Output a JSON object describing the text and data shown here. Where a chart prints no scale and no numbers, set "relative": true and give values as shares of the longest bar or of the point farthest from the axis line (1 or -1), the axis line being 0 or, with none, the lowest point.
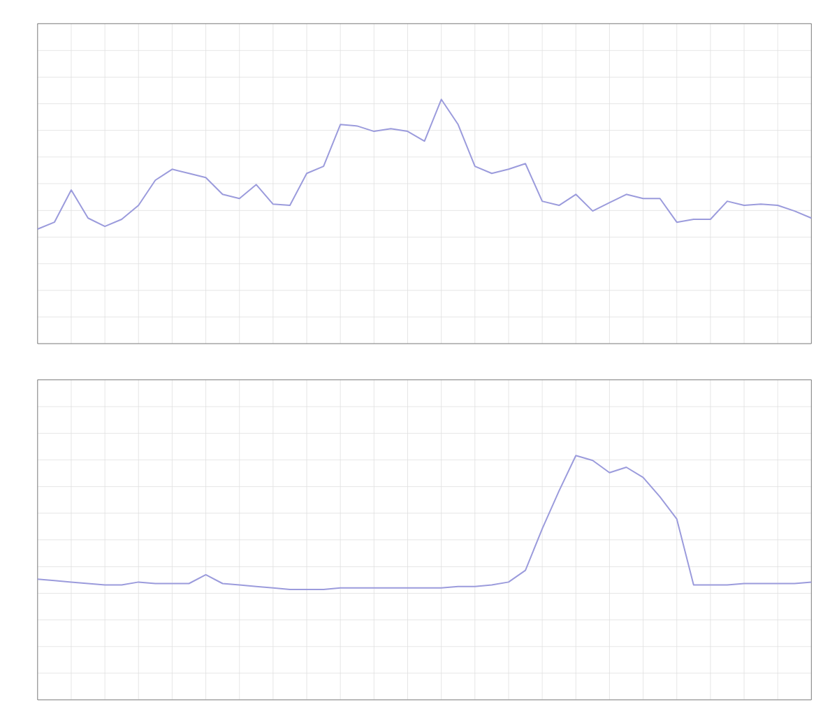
{
  "chart_data": [
    {
      "type": "line",
      "relative": true,
      "grid": true,
      "categories": [
        null,
        null,
        null,
        null,
        null,
        null,
        null,
        null,
        null,
        null,
        null,
        null,
        null,
        null,
        null,
        null,
        null,
        null,
        null,
        null,
        null,
        null,
        null,
        null,
        null,
        null,
        null,
        null,
        null,
        null,
        null,
        null,
        null,
        null,
        null,
        null,
        null,
        null,
        null,
        null,
        null,
        null,
        null,
        null,
        null,
        null,
        null
      ],
      "series": [
        {
          "color": "#9b9bdc",
          "values": [
            0.469,
            0.497,
            0.629,
            0.514,
            0.48,
            0.509,
            0.566,
            0.669,
            0.714,
            0.697,
            0.68,
            0.611,
            0.594,
            0.651,
            0.571,
            0.566,
            0.697,
            0.726,
            0.897,
            0.891,
            0.869,
            0.88,
            0.869,
            0.829,
            1,
            0.897,
            0.726,
            0.697,
            0.714,
            0.737,
            0.583,
            0.566,
            0.611,
            0.543,
            0.577,
            0.611,
            0.594,
            0.594,
            0.497,
            0.509,
            0.509,
            0.583,
            0.566,
            0.571,
            0.566,
            0.543,
            0.514
          ]
        }
      ]
    },
    {
      "type": "line",
      "relative": true,
      "grid": true,
      "categories": [
        null,
        null,
        null,
        null,
        null,
        null,
        null,
        null,
        null,
        null,
        null,
        null,
        null,
        null,
        null,
        null,
        null,
        null,
        null,
        null,
        null,
        null,
        null,
        null,
        null,
        null,
        null,
        null,
        null,
        null,
        null,
        null,
        null,
        null,
        null,
        null,
        null,
        null,
        null,
        null,
        null,
        null,
        null,
        null,
        null,
        null,
        null
      ],
      "series": [
        {
          "color": "#9b9bdc",
          "values": [
            0.494,
            0.488,
            0.482,
            0.476,
            0.47,
            0.47,
            0.482,
            0.476,
            0.476,
            0.476,
            0.512,
            0.476,
            0.47,
            0.464,
            0.458,
            0.452,
            0.452,
            0.452,
            0.458,
            0.458,
            0.458,
            0.458,
            0.458,
            0.458,
            0.458,
            0.464,
            0.464,
            0.47,
            0.482,
            0.53,
            0.7,
            0.855,
            1,
            0.98,
            0.93,
            0.952,
            0.91,
            0.831,
            0.74,
            0.47,
            0.47,
            0.47,
            0.476,
            0.476,
            0.476,
            0.476,
            0.482
          ]
        }
      ]
    }
  ]
}
